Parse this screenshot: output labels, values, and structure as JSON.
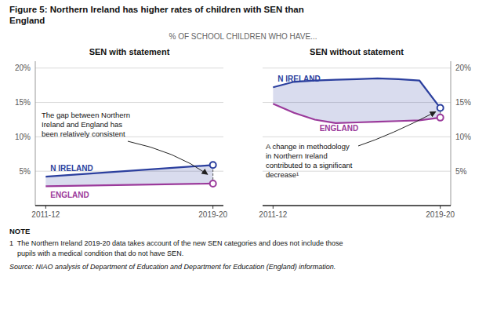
{
  "title": "Figure 5: Northern Ireland has higher rates of children with SEN than\nEngland",
  "subtitle": "% OF SCHOOL CHILDREN WHO HAVE...",
  "notes": [
    "NOTE",
    "1  The Northern Ireland 2019-20 data takes account of the new SEN categories and does not include those",
    "    pupils with a medical condition that do not have SEN.",
    "Source: NIAO analysis of Department of Education and Department for Education (England) information."
  ],
  "chart_data": [
    {
      "type": "line",
      "title": "SEN with statement",
      "x": [
        2011.5,
        2019.5
      ],
      "xlim": [
        2011,
        2020
      ],
      "xticks": [
        {
          "value": 2011.5,
          "label": "2011-12"
        },
        {
          "value": 2019.5,
          "label": "2019-20"
        }
      ],
      "ylim": [
        0,
        21
      ],
      "yticks": [
        {
          "value": 5,
          "label": "5%"
        },
        {
          "value": 10,
          "label": "10%"
        },
        {
          "value": 15,
          "label": "15%"
        },
        {
          "value": 20,
          "label": "20%"
        }
      ],
      "grid": true,
      "series": [
        {
          "name": "N IRELAND",
          "color": "#2B3F9E",
          "values": [
            4.2,
            5.9
          ]
        },
        {
          "name": "ENGLAND",
          "color": "#9B3A9B",
          "values": [
            2.8,
            3.2
          ]
        }
      ],
      "annotations": [
        "The gap between Northern\nIreland and England has\nbeen relatively consistent"
      ]
    },
    {
      "type": "line",
      "title": "SEN without statement",
      "x": [
        2011.5,
        2012.5,
        2013.5,
        2014.5,
        2015.5,
        2016.5,
        2017.5,
        2018.5,
        2019.5
      ],
      "xlim": [
        2011,
        2020
      ],
      "xticks": [
        {
          "value": 2011.5,
          "label": "2011-12"
        },
        {
          "value": 2019.5,
          "label": "2019-20"
        }
      ],
      "ylim": [
        0,
        21
      ],
      "yticks": [
        {
          "value": 5,
          "label": "5%"
        },
        {
          "value": 10,
          "label": "10%"
        },
        {
          "value": 15,
          "label": "15%"
        },
        {
          "value": 20,
          "label": "20%"
        }
      ],
      "grid": true,
      "series": [
        {
          "name": "N IRELAND",
          "color": "#2B3F9E",
          "values": [
            17.2,
            18.0,
            18.2,
            18.3,
            18.4,
            18.5,
            18.4,
            18.2,
            14.2
          ]
        },
        {
          "name": "ENGLAND",
          "color": "#9B3A9B",
          "values": [
            14.8,
            13.5,
            12.5,
            12.0,
            12.1,
            12.2,
            12.3,
            12.4,
            12.8
          ]
        }
      ],
      "annotations": [
        "A change in methodology\nin Northern Ireland\ncontributed to a significant\ndecrease¹"
      ]
    }
  ]
}
